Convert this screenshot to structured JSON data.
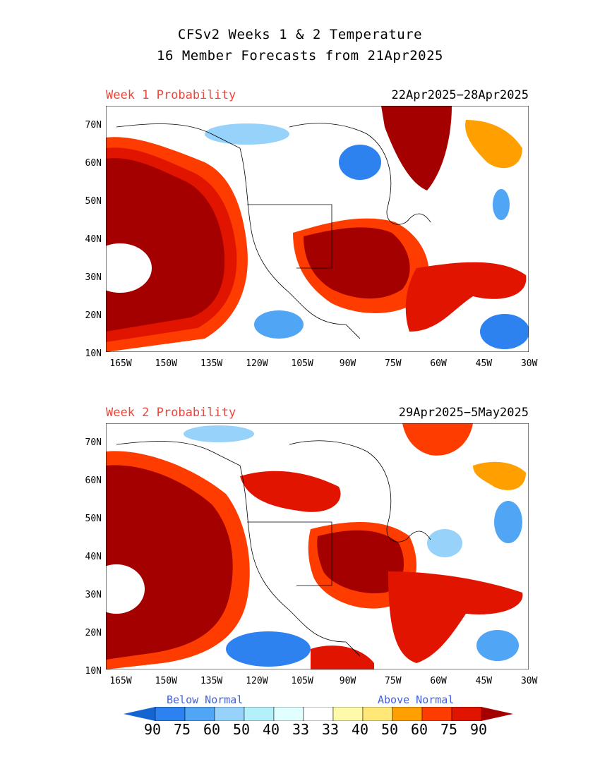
{
  "title": {
    "line1": "CFSv2 Weeks 1 & 2 Temperature",
    "line2": "16 Member Forecasts from 21Apr2025"
  },
  "panels": [
    {
      "label": "Week 1 Probability",
      "dates": "22Apr2025−28Apr2025"
    },
    {
      "label": "Week 2 Probability",
      "dates": "29Apr2025−5May2025"
    }
  ],
  "axes": {
    "lat_ticks": [
      "70N",
      "60N",
      "50N",
      "40N",
      "30N",
      "20N",
      "10N"
    ],
    "lon_ticks": [
      "165W",
      "150W",
      "135W",
      "120W",
      "105W",
      "90W",
      "75W",
      "60W",
      "45W",
      "30W"
    ],
    "lat_range": [
      10,
      75
    ],
    "lon_range": [
      -170,
      -30
    ]
  },
  "legend": {
    "below_label": "Below Normal",
    "above_label": "Above Normal",
    "values": [
      "90",
      "75",
      "60",
      "50",
      "40",
      "33",
      "33",
      "40",
      "50",
      "60",
      "75",
      "90"
    ],
    "colors": [
      "#1464d2",
      "#2d82f0",
      "#50a5f5",
      "#96d2fa",
      "#b4f0fa",
      "#e1ffff",
      "#ffffff",
      "#fffaaa",
      "#ffe878",
      "#ffa000",
      "#ff3c00",
      "#e11400",
      "#a50000"
    ]
  },
  "colors": {
    "below_text": "#4060e0",
    "above_text": "#4060e0",
    "panel_label": "#e8483c"
  }
}
